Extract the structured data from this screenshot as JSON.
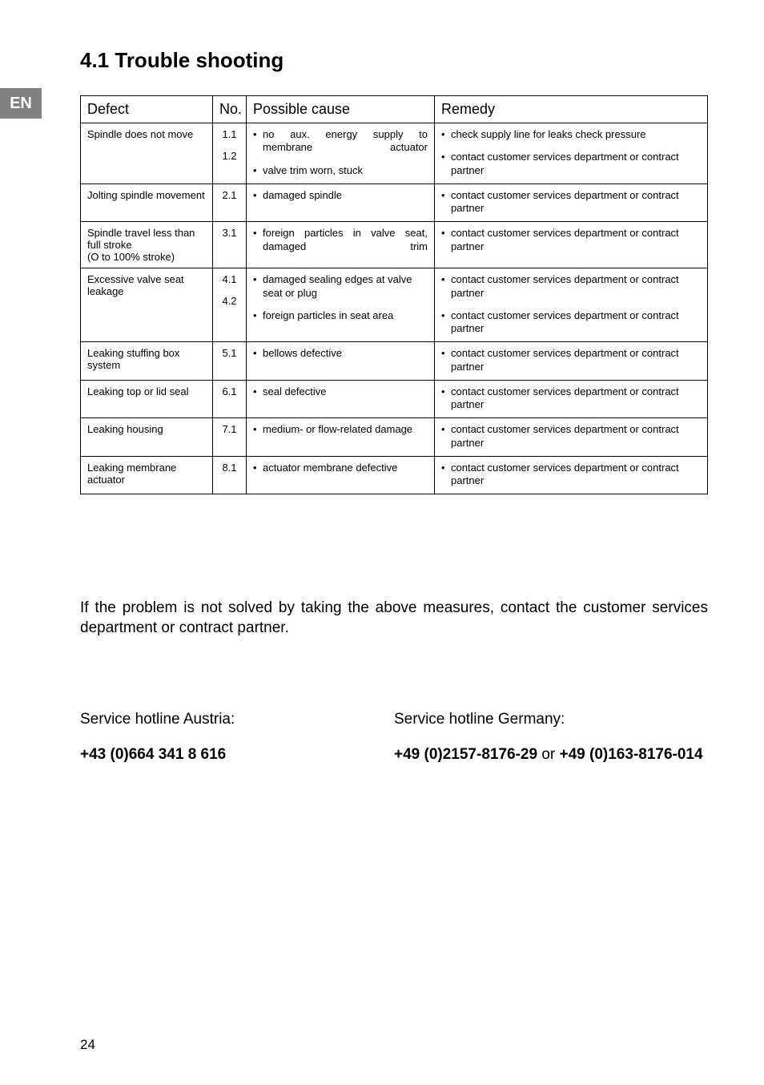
{
  "lang_tab": "EN",
  "section_title": "4.1 Trouble shooting",
  "table": {
    "headers": {
      "defect": "Defect",
      "no": "No.",
      "cause": "Possible cause",
      "remedy": "Remedy"
    },
    "rows": [
      {
        "defect": "Spindle does not move",
        "items": [
          {
            "no": "1.1",
            "cause": "no aux. energy supply to membrane actuator",
            "remedy": "check supply line for leaks check pressure",
            "cause_justify": true
          },
          {
            "no": "1.2",
            "cause": "valve trim worn, stuck",
            "remedy": "contact customer services department or contract partner"
          }
        ]
      },
      {
        "defect": "Jolting spindle movement",
        "items": [
          {
            "no": "2.1",
            "cause": "damaged spindle",
            "remedy": "contact customer services department or contract partner"
          }
        ]
      },
      {
        "defect": "Spindle travel less than full stroke\n(O to 100% stroke)",
        "items": [
          {
            "no": "3.1",
            "cause": "foreign particles in valve seat, damaged trim",
            "remedy": "contact customer services department or contract partner",
            "cause_justify": true
          }
        ]
      },
      {
        "defect": "Excessive valve seat leakage",
        "items": [
          {
            "no": "4.1",
            "cause": "damaged sealing edges at valve seat or plug",
            "remedy": "contact customer services department or contract partner"
          },
          {
            "no": "4.2",
            "cause": "foreign particles in seat area",
            "remedy": "contact customer services department or contract partner"
          }
        ]
      },
      {
        "defect": "Leaking stuffing box system",
        "items": [
          {
            "no": "5.1",
            "cause": "bellows defective",
            "remedy": "contact customer services department or contract partner"
          }
        ]
      },
      {
        "defect": "Leaking top or lid seal",
        "items": [
          {
            "no": "6.1",
            "cause": "seal defective",
            "remedy": "contact customer services department or contract partner"
          }
        ]
      },
      {
        "defect": "Leaking housing",
        "items": [
          {
            "no": "7.1",
            "cause": "medium- or flow-related damage",
            "remedy": "contact customer services department or contract partner"
          }
        ]
      },
      {
        "defect": "Leaking membrane actuator",
        "items": [
          {
            "no": "8.1",
            "cause": "actuator membrane defective",
            "remedy": "contact customer services department or contract partner"
          }
        ]
      }
    ]
  },
  "note": "If the problem is not solved by taking the above measures, contact the customer services department or contract partner.",
  "hotlines": {
    "left_label": "Service hotline Austria:",
    "left_phone": "+43 (0)664 341 8 616",
    "right_label": "Service hotline Germany:",
    "right_phone_a": "+49 (0)2157-8176-29",
    "right_or": " or ",
    "right_phone_b": "+49 (0)163-8176-014"
  },
  "page_number": "24"
}
